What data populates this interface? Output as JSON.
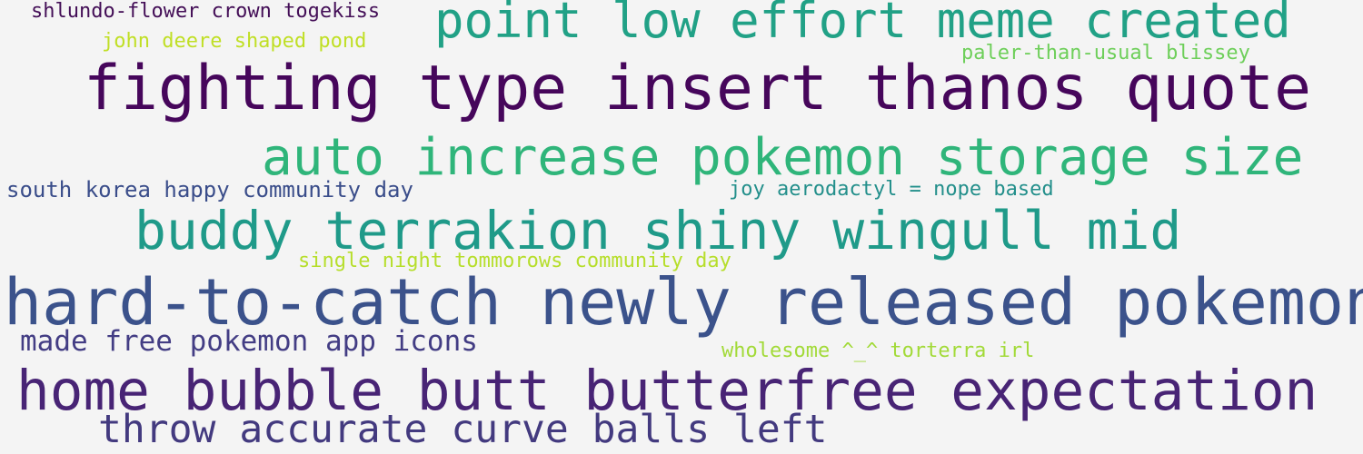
{
  "background": "#f4f4f4",
  "phrases": [
    {
      "text": "shlundo-flower crown togekiss",
      "color": "#440f57"
    },
    {
      "text": "point low effort meme created",
      "color": "#21a186"
    },
    {
      "text": "john deere shaped pond",
      "color": "#c0df25"
    },
    {
      "text": "paler-than-usual blissey",
      "color": "#6ecf5a"
    },
    {
      "text": "fighting type insert thanos quote",
      "color": "#46065b"
    },
    {
      "text": "auto increase pokemon storage size",
      "color": "#2fb57a"
    },
    {
      "text": "south korea happy community day",
      "color": "#3a4d8a"
    },
    {
      "text": "joy aerodactyl = nope based",
      "color": "#238f8b"
    },
    {
      "text": "buddy terrakion shiny wingull mid",
      "color": "#1f9a89"
    },
    {
      "text": "single night tommorows community day",
      "color": "#b6de2b"
    },
    {
      "text": "hard-to-catch newly released pokemon",
      "color": "#3b528b"
    },
    {
      "text": "made free pokemon app icons",
      "color": "#433d84"
    },
    {
      "text": "wholesome ^_^ torterra irl",
      "color": "#a2da38"
    },
    {
      "text": "home bubble butt butterfree expectation",
      "color": "#482475"
    },
    {
      "text": "throw accurate curve balls left",
      "color": "#433a7f"
    }
  ]
}
